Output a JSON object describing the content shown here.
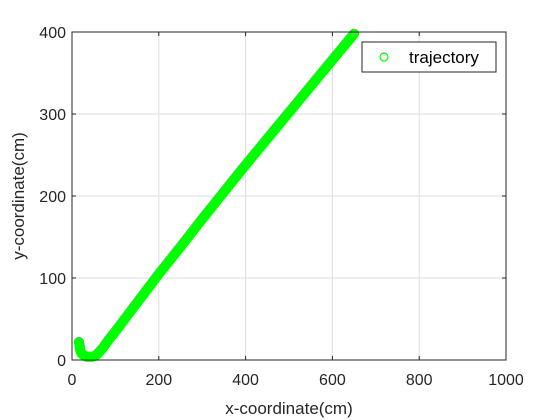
{
  "chart_data": {
    "type": "scatter",
    "title": "",
    "xlabel": "x-coordinate(cm)",
    "ylabel": "y-coordinate(cm)",
    "xlim": [
      0,
      1000
    ],
    "ylim": [
      0,
      400
    ],
    "xticks": [
      0,
      200,
      400,
      600,
      800,
      1000
    ],
    "yticks": [
      0,
      100,
      200,
      300,
      400
    ],
    "grid": true,
    "legend_position": "top-right",
    "series": [
      {
        "name": "trajectory",
        "marker": "circle-open",
        "color": "#00ff00",
        "points": [
          [
            16,
            22
          ],
          [
            17,
            20
          ],
          [
            17,
            18
          ],
          [
            18,
            16
          ],
          [
            18,
            14
          ],
          [
            19,
            12
          ],
          [
            20,
            10
          ],
          [
            22,
            8
          ],
          [
            24,
            7
          ],
          [
            27,
            6
          ],
          [
            30,
            5
          ],
          [
            34,
            4
          ],
          [
            38,
            4
          ],
          [
            43,
            4
          ],
          [
            48,
            4
          ],
          [
            53,
            5
          ],
          [
            58,
            7
          ],
          [
            63,
            10
          ],
          [
            68,
            13
          ],
          [
            73,
            16
          ],
          [
            78,
            20
          ],
          [
            85,
            25
          ],
          [
            100,
            35
          ],
          [
            150,
            70
          ],
          [
            200,
            105
          ],
          [
            250,
            138
          ],
          [
            300,
            172
          ],
          [
            350,
            205
          ],
          [
            400,
            238
          ],
          [
            450,
            270
          ],
          [
            500,
            302
          ],
          [
            550,
            334
          ],
          [
            600,
            366
          ],
          [
            650,
            398
          ]
        ]
      }
    ]
  }
}
